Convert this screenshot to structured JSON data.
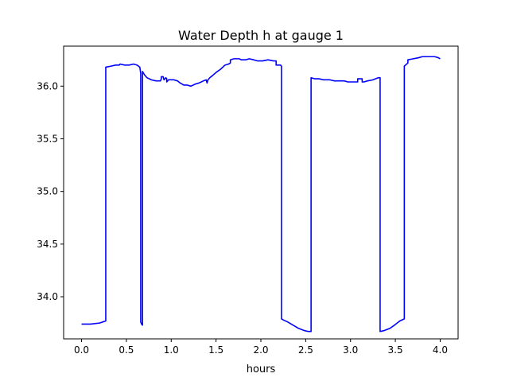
{
  "chart_data": {
    "type": "line",
    "title": "Water Depth h at gauge 1",
    "xlabel": "hours",
    "ylabel": "",
    "xlim": [
      -0.2,
      4.2
    ],
    "ylim": [
      33.6,
      36.38
    ],
    "xticks": [
      0.0,
      0.5,
      1.0,
      1.5,
      2.0,
      2.5,
      3.0,
      3.5,
      4.0
    ],
    "xtick_labels": [
      "0.0",
      "0.5",
      "1.0",
      "1.5",
      "2.0",
      "2.5",
      "3.0",
      "3.5",
      "4.0"
    ],
    "yticks": [
      34.0,
      34.5,
      35.0,
      35.5,
      36.0
    ],
    "ytick_labels": [
      "34.0",
      "34.5",
      "35.0",
      "35.5",
      "36.0"
    ],
    "grid": false,
    "legend": "none",
    "colors": {
      "line": "#0000ff",
      "axes": "#000000",
      "background": "#ffffff"
    },
    "series": [
      {
        "x": [
          0.0,
          0.1,
          0.2,
          0.27,
          0.27,
          0.33,
          0.38,
          0.42,
          0.43,
          0.48,
          0.53,
          0.58,
          0.62,
          0.65,
          0.66,
          0.66,
          0.67,
          0.68,
          0.68,
          0.7,
          0.73,
          0.78,
          0.83,
          0.88,
          0.89,
          0.89,
          0.91,
          0.92,
          0.94,
          0.95,
          0.95,
          0.97,
          1.03,
          1.07,
          1.1,
          1.14,
          1.18,
          1.22,
          1.27,
          1.31,
          1.36,
          1.39,
          1.4,
          1.41,
          1.43,
          1.46,
          1.5,
          1.55,
          1.6,
          1.64,
          1.66,
          1.66,
          1.7,
          1.76,
          1.78,
          1.83,
          1.87,
          1.92,
          1.96,
          2.02,
          2.08,
          2.14,
          2.16,
          2.17,
          2.17,
          2.22,
          2.23,
          2.23,
          2.25,
          2.3,
          2.36,
          2.42,
          2.48,
          2.53,
          2.56,
          2.56,
          2.6,
          2.65,
          2.7,
          2.77,
          2.82,
          2.87,
          2.93,
          2.97,
          3.03,
          3.06,
          3.08,
          3.08,
          3.13,
          3.13,
          3.15,
          3.19,
          3.25,
          3.28,
          3.31,
          3.33,
          3.33,
          3.38,
          3.44,
          3.49,
          3.55,
          3.6,
          3.6,
          3.64,
          3.64,
          3.7,
          3.76,
          3.8,
          3.84,
          3.9,
          3.94,
          3.98,
          4.0
        ],
        "y": [
          33.74,
          33.74,
          33.75,
          33.77,
          36.18,
          36.19,
          36.2,
          36.2,
          36.21,
          36.2,
          36.2,
          36.21,
          36.2,
          36.18,
          36.12,
          33.76,
          33.74,
          33.73,
          36.14,
          36.11,
          36.08,
          36.06,
          36.05,
          36.05,
          36.07,
          36.09,
          36.09,
          36.06,
          36.08,
          36.07,
          36.04,
          36.06,
          36.06,
          36.05,
          36.03,
          36.01,
          36.01,
          36.0,
          36.02,
          36.03,
          36.05,
          36.06,
          36.03,
          36.06,
          36.08,
          36.1,
          36.13,
          36.16,
          36.2,
          36.21,
          36.22,
          36.25,
          36.26,
          36.26,
          36.25,
          36.25,
          36.26,
          36.25,
          36.24,
          36.24,
          36.25,
          36.24,
          36.24,
          36.24,
          36.2,
          36.2,
          36.19,
          33.79,
          33.78,
          33.76,
          33.73,
          33.7,
          33.68,
          33.67,
          33.67,
          36.08,
          36.07,
          36.07,
          36.06,
          36.06,
          36.05,
          36.05,
          36.05,
          36.04,
          36.04,
          36.04,
          36.04,
          36.07,
          36.07,
          36.04,
          36.04,
          36.05,
          36.06,
          36.07,
          36.08,
          36.08,
          33.67,
          33.68,
          33.7,
          33.73,
          33.77,
          33.79,
          36.19,
          36.22,
          36.25,
          36.26,
          36.27,
          36.28,
          36.28,
          36.28,
          36.28,
          36.27,
          36.26
        ]
      }
    ]
  }
}
